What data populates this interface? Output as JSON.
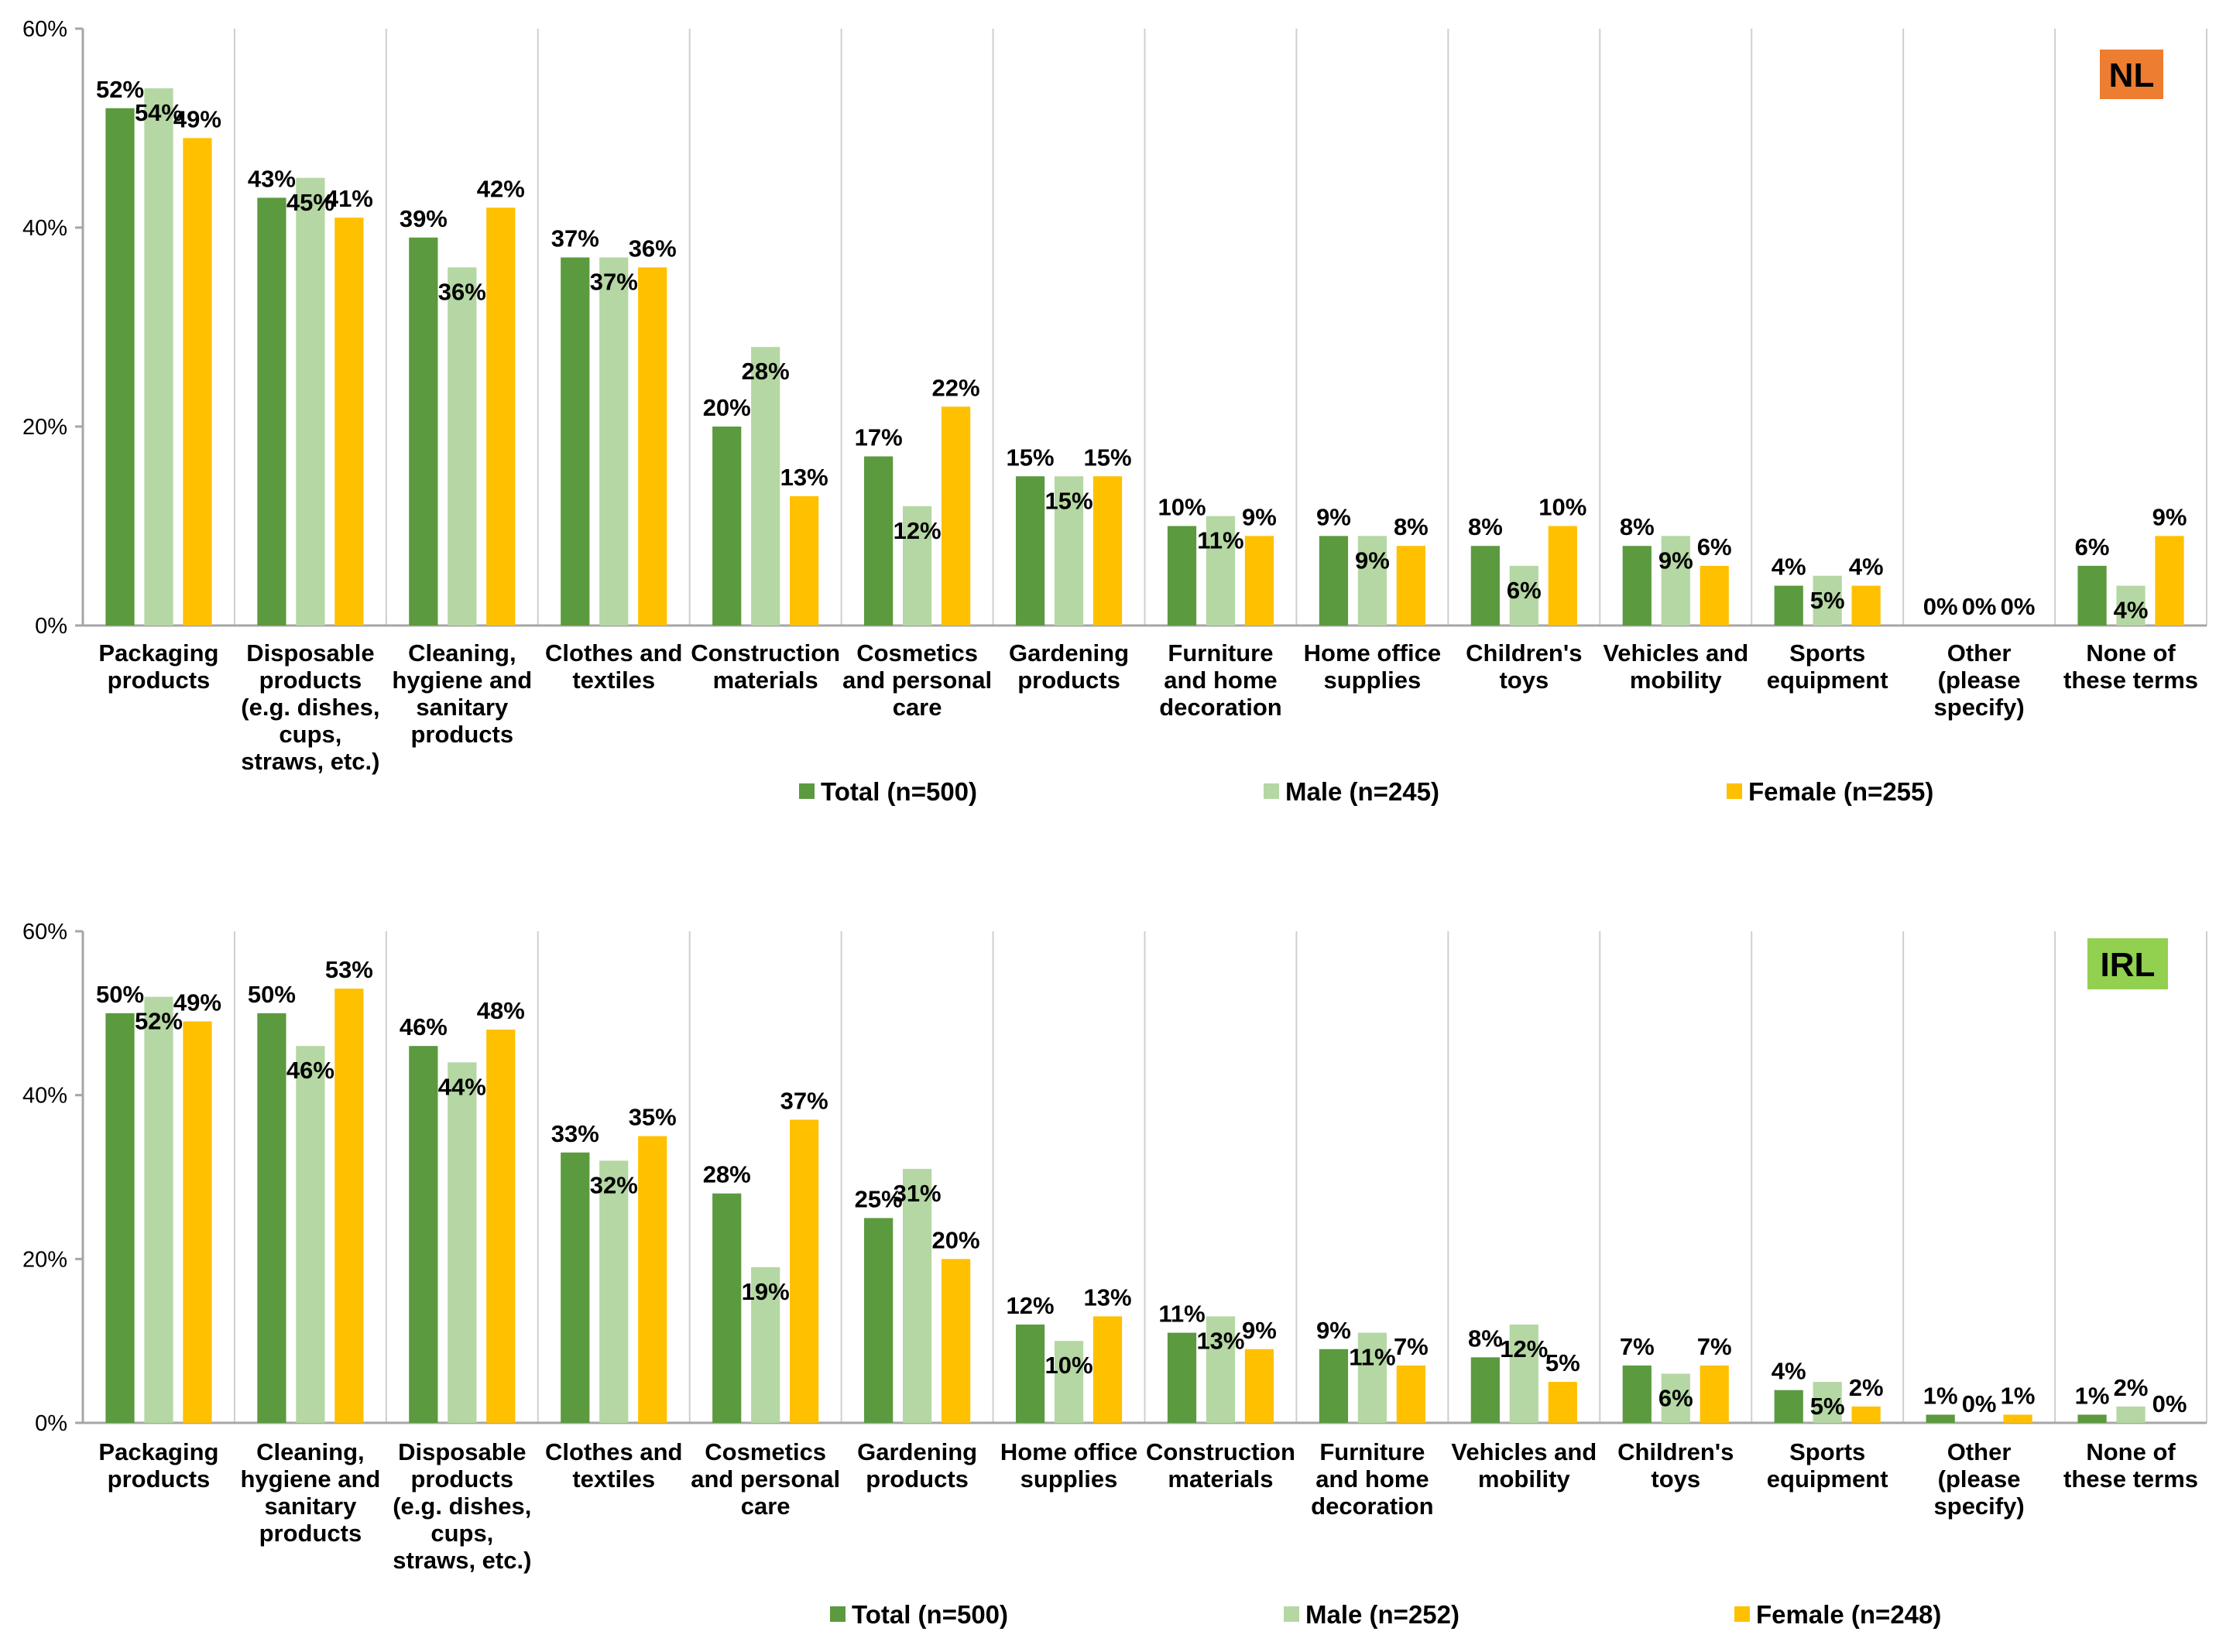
{
  "colors": {
    "total": "#5b9a3e",
    "male": "#b5d7a3",
    "female": "#ffc000",
    "grid": "#cfcfcf",
    "axis": "#a6a6a6"
  },
  "chart_data": [
    {
      "type": "bar",
      "badge": "NL",
      "badge_color": "#ed7d31",
      "y_ticks": [
        "0%",
        "20%",
        "40%",
        "60%"
      ],
      "ylim": [
        0,
        60
      ],
      "grid": "vertical separators",
      "categories": [
        [
          "Packaging",
          "products"
        ],
        [
          "Disposable",
          "products",
          "(e.g. dishes,",
          "cups,",
          "straws, etc.)"
        ],
        [
          "Cleaning,",
          "hygiene and",
          "sanitary",
          "products"
        ],
        [
          "Clothes and",
          "textiles"
        ],
        [
          "Construction",
          "materials"
        ],
        [
          "Cosmetics",
          "and personal",
          "care"
        ],
        [
          "Gardening",
          "products"
        ],
        [
          "Furniture",
          "and home",
          "decoration"
        ],
        [
          "Home office",
          "supplies"
        ],
        [
          "Children's",
          "toys"
        ],
        [
          "Vehicles and",
          "mobility"
        ],
        [
          "Sports",
          "equipment"
        ],
        [
          "Other",
          "(please",
          "specify)"
        ],
        [
          "None of",
          "these terms"
        ]
      ],
      "series": [
        {
          "name": "Total (n=500)",
          "color_key": "total",
          "values": [
            52,
            43,
            39,
            37,
            20,
            17,
            15,
            10,
            9,
            8,
            8,
            4,
            0,
            6
          ],
          "labels": [
            "52%",
            "43%",
            "39%",
            "37%",
            "20%",
            "17%",
            "15%",
            "10%",
            "9%",
            "8%",
            "8%",
            "4%",
            "0%",
            "6%"
          ]
        },
        {
          "name": "Male (n=245)",
          "color_key": "male",
          "values": [
            54,
            45,
            36,
            37,
            28,
            12,
            15,
            11,
            9,
            6,
            9,
            5,
            0,
            4
          ],
          "labels": [
            "54%",
            "45%",
            "36%",
            "37%",
            "28%",
            "12%",
            "15%",
            "11%",
            "9%",
            "6%",
            "9%",
            "5%",
            "0%",
            "4%"
          ]
        },
        {
          "name": "Female (n=255)",
          "color_key": "female",
          "values": [
            49,
            41,
            42,
            36,
            13,
            22,
            15,
            9,
            8,
            10,
            6,
            4,
            0,
            9
          ],
          "labels": [
            "49%",
            "41%",
            "42%",
            "36%",
            "13%",
            "22%",
            "15%",
            "9%",
            "8%",
            "10%",
            "6%",
            "4%",
            "0%",
            "9%"
          ]
        }
      ]
    },
    {
      "type": "bar",
      "badge": "IRL",
      "badge_color": "#92d050",
      "y_ticks": [
        "0%",
        "20%",
        "40%",
        "60%"
      ],
      "ylim": [
        0,
        60
      ],
      "grid": "vertical separators",
      "categories": [
        [
          "Packaging",
          "products"
        ],
        [
          "Cleaning,",
          "hygiene and",
          "sanitary",
          "products"
        ],
        [
          "Disposable",
          "products",
          "(e.g. dishes,",
          "cups,",
          "straws, etc.)"
        ],
        [
          "Clothes and",
          "textiles"
        ],
        [
          "Cosmetics",
          "and personal",
          "care"
        ],
        [
          "Gardening",
          "products"
        ],
        [
          "Home office",
          "supplies"
        ],
        [
          "Construction",
          "materials"
        ],
        [
          "Furniture",
          "and home",
          "decoration"
        ],
        [
          "Vehicles and",
          "mobility"
        ],
        [
          "Children's",
          "toys"
        ],
        [
          "Sports",
          "equipment"
        ],
        [
          "Other",
          "(please",
          "specify)"
        ],
        [
          "None of",
          "these terms"
        ]
      ],
      "series": [
        {
          "name": "Total (n=500)",
          "color_key": "total",
          "values": [
            50,
            50,
            46,
            33,
            28,
            25,
            12,
            11,
            9,
            8,
            7,
            4,
            1,
            1
          ],
          "labels": [
            "50%",
            "50%",
            "46%",
            "33%",
            "28%",
            "25%",
            "12%",
            "11%",
            "9%",
            "8%",
            "7%",
            "4%",
            "1%",
            "1%"
          ]
        },
        {
          "name": "Male (n=252)",
          "color_key": "male",
          "values": [
            52,
            46,
            44,
            32,
            19,
            31,
            10,
            13,
            11,
            12,
            6,
            5,
            0,
            2
          ],
          "labels": [
            "52%",
            "46%",
            "44%",
            "32%",
            "19%",
            "31%",
            "10%",
            "13%",
            "11%",
            "12%",
            "6%",
            "5%",
            "0%",
            "2%"
          ]
        },
        {
          "name": "Female (n=248)",
          "color_key": "female",
          "values": [
            49,
            53,
            48,
            35,
            37,
            20,
            13,
            9,
            7,
            5,
            7,
            2,
            1,
            0
          ],
          "labels": [
            "49%",
            "53%",
            "48%",
            "35%",
            "37%",
            "20%",
            "13%",
            "9%",
            "7%",
            "5%",
            "7%",
            "2%",
            "1%",
            "0%"
          ]
        }
      ]
    }
  ]
}
